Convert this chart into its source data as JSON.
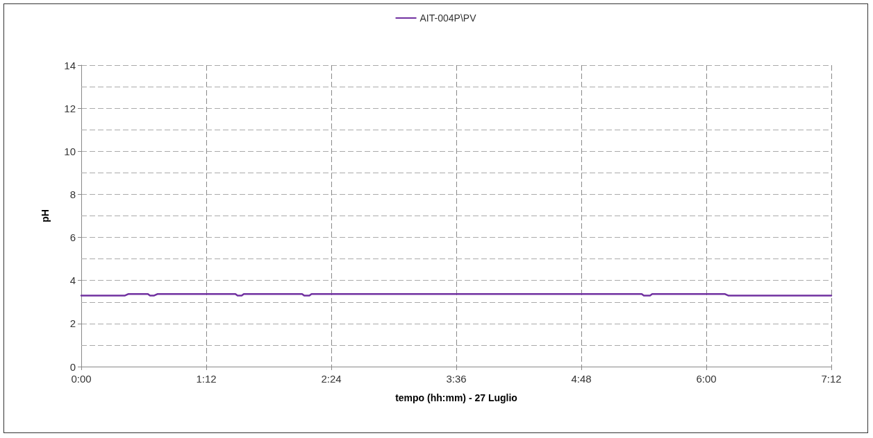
{
  "chart_data": {
    "type": "line",
    "xlabel": "tempo (hh:mm) - 27 Luglio",
    "ylabel": "pH",
    "series": [
      {
        "name": "AIT-004P\\PV",
        "color": "#7030a0",
        "x": [
          0,
          0.42,
          0.45,
          0.64,
          0.66,
          0.7,
          0.73,
          1.48,
          1.5,
          1.54,
          1.56,
          2.12,
          2.14,
          2.19,
          2.21,
          5.38,
          5.4,
          5.46,
          5.48,
          6.18,
          6.21,
          7.2
        ],
        "values": [
          3.3,
          3.3,
          3.37,
          3.37,
          3.3,
          3.3,
          3.37,
          3.37,
          3.3,
          3.3,
          3.37,
          3.37,
          3.3,
          3.3,
          3.37,
          3.37,
          3.3,
          3.3,
          3.37,
          3.37,
          3.3,
          3.3
        ]
      }
    ],
    "xlim": [
      0,
      7.2
    ],
    "xticks": [
      {
        "value": 0,
        "label": "0:00"
      },
      {
        "value": 1.2,
        "label": "1:12"
      },
      {
        "value": 2.4,
        "label": "2:24"
      },
      {
        "value": 3.6,
        "label": "3:36"
      },
      {
        "value": 4.8,
        "label": "4:48"
      },
      {
        "value": 6,
        "label": "6:00"
      },
      {
        "value": 7.2,
        "label": "7:12"
      }
    ],
    "ylim": [
      0,
      14
    ],
    "yticks": [
      0,
      {
        "value": 1,
        "label": null
      },
      2,
      {
        "value": 3,
        "label": null
      },
      4,
      {
        "value": 5,
        "label": null
      },
      6,
      {
        "value": 7,
        "label": null
      },
      8,
      {
        "value": 9,
        "label": null
      },
      10,
      {
        "value": 11,
        "label": null
      },
      12,
      {
        "value": 13,
        "label": null
      },
      14
    ],
    "grid": true,
    "legend": "top",
    "marker": "none",
    "line_style": "solid"
  }
}
